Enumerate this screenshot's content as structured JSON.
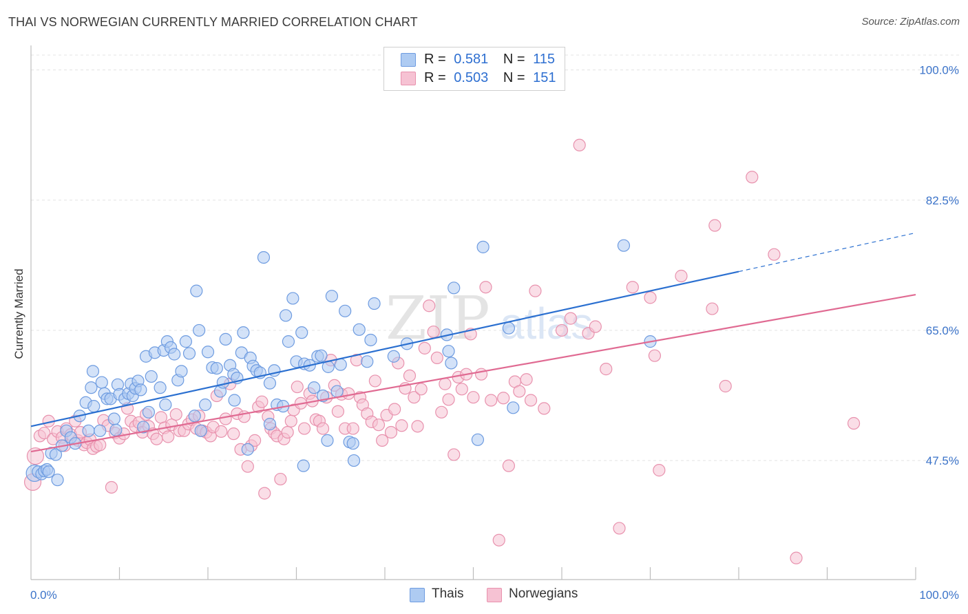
{
  "title": "THAI VS NORWEGIAN CURRENTLY MARRIED CORRELATION CHART",
  "source": "Source: ZipAtlas.com",
  "legend": {
    "r_label": "R =",
    "n_label": "N =",
    "thais": {
      "r": "0.581",
      "n": "115"
    },
    "norwegians": {
      "r": "0.503",
      "n": "151"
    }
  },
  "watermark": {
    "zip": "ZIP",
    "atlas": "atlas"
  },
  "colors": {
    "thais_fill": "#aecbf2",
    "thais_stroke": "#6d9be0",
    "thais_line": "#2a6fd0",
    "norw_fill": "#f6c2d3",
    "norw_stroke": "#e891ad",
    "norw_line": "#e06a92",
    "tick_label": "#3b73c9",
    "grid": "#e3e3e3"
  },
  "chart_data": {
    "type": "scatter",
    "xlabel": "",
    "ylabel": "Currently Married",
    "xlim": [
      0,
      100
    ],
    "ylim": [
      31.5,
      102
    ],
    "x_tick_labels": [
      {
        "value": 0,
        "label": "0.0%"
      },
      {
        "value": 100,
        "label": "100.0%"
      }
    ],
    "y_ticks": [
      {
        "value": 100,
        "label": "100.0%"
      },
      {
        "value": 82.5,
        "label": "82.5%"
      },
      {
        "value": 65,
        "label": "65.0%"
      },
      {
        "value": 47.5,
        "label": "47.5%"
      }
    ],
    "grid": true,
    "legend_position": "top-center",
    "series": [
      {
        "name": "Thais",
        "r": 0.581,
        "n": 115,
        "trend": {
          "x0": 0,
          "y0": 52.1,
          "x1": 80,
          "y1": 72.9,
          "dashed_to_x": 100,
          "dashed_to_y": 78.1
        },
        "points": [
          [
            0.4,
            45.8
          ],
          [
            0.8,
            46.0
          ],
          [
            1.2,
            45.7
          ],
          [
            1.5,
            46.1
          ],
          [
            1.8,
            46.3
          ],
          [
            2.0,
            46.0
          ],
          [
            3.0,
            44.9
          ],
          [
            2.3,
            48.5
          ],
          [
            2.8,
            48.3
          ],
          [
            3.5,
            49.5
          ],
          [
            4.0,
            51.5
          ],
          [
            4.5,
            50.6
          ],
          [
            5.0,
            49.8
          ],
          [
            5.5,
            53.5
          ],
          [
            6.2,
            55.3
          ],
          [
            6.5,
            51.5
          ],
          [
            6.8,
            57.3
          ],
          [
            7.1,
            54.8
          ],
          [
            7.8,
            51.5
          ],
          [
            8.0,
            58.0
          ],
          [
            8.3,
            56.5
          ],
          [
            8.6,
            55.8
          ],
          [
            9.0,
            55.8
          ],
          [
            9.4,
            53.1
          ],
          [
            9.8,
            57.7
          ],
          [
            10.0,
            56.4
          ],
          [
            10.6,
            55.8
          ],
          [
            11.0,
            56.5
          ],
          [
            11.3,
            57.8
          ],
          [
            11.5,
            56.2
          ],
          [
            11.8,
            57.2
          ],
          [
            12.1,
            58.2
          ],
          [
            12.4,
            57.0
          ],
          [
            12.7,
            52.0
          ],
          [
            13.0,
            61.5
          ],
          [
            13.3,
            54.0
          ],
          [
            13.6,
            58.8
          ],
          [
            14.0,
            62.0
          ],
          [
            14.6,
            57.3
          ],
          [
            15.0,
            62.3
          ],
          [
            15.4,
            63.5
          ],
          [
            15.8,
            62.7
          ],
          [
            16.2,
            61.8
          ],
          [
            16.6,
            58.3
          ],
          [
            17.0,
            59.5
          ],
          [
            17.5,
            63.5
          ],
          [
            17.9,
            61.9
          ],
          [
            18.5,
            53.5
          ],
          [
            18.7,
            70.3
          ],
          [
            19.0,
            65.0
          ],
          [
            19.2,
            51.5
          ],
          [
            19.7,
            55.0
          ],
          [
            20.0,
            62.1
          ],
          [
            20.5,
            60.0
          ],
          [
            21.0,
            59.9
          ],
          [
            21.4,
            56.8
          ],
          [
            21.7,
            58.0
          ],
          [
            22.0,
            63.8
          ],
          [
            22.5,
            60.3
          ],
          [
            22.9,
            59.1
          ],
          [
            23.3,
            58.6
          ],
          [
            23.8,
            62.0
          ],
          [
            24.0,
            64.7
          ],
          [
            24.5,
            49.0
          ],
          [
            24.8,
            61.3
          ],
          [
            25.1,
            60.2
          ],
          [
            25.5,
            59.6
          ],
          [
            25.9,
            59.3
          ],
          [
            26.3,
            74.8
          ],
          [
            27.0,
            57.9
          ],
          [
            27.0,
            52.4
          ],
          [
            27.5,
            59.6
          ],
          [
            27.8,
            55.0
          ],
          [
            28.5,
            54.8
          ],
          [
            28.8,
            67.0
          ],
          [
            29.1,
            63.5
          ],
          [
            29.6,
            69.3
          ],
          [
            30.0,
            60.8
          ],
          [
            30.6,
            64.7
          ],
          [
            30.8,
            46.8
          ],
          [
            30.9,
            60.5
          ],
          [
            31.5,
            60.3
          ],
          [
            32.0,
            57.3
          ],
          [
            32.4,
            61.5
          ],
          [
            32.8,
            61.6
          ],
          [
            33.0,
            56.2
          ],
          [
            33.5,
            50.2
          ],
          [
            33.6,
            60.1
          ],
          [
            34.0,
            69.6
          ],
          [
            34.6,
            56.8
          ],
          [
            35.0,
            60.4
          ],
          [
            35.5,
            67.6
          ],
          [
            36.0,
            50.0
          ],
          [
            36.4,
            49.8
          ],
          [
            36.5,
            47.5
          ],
          [
            37.1,
            65.1
          ],
          [
            38.0,
            60.8
          ],
          [
            38.4,
            63.7
          ],
          [
            38.8,
            68.6
          ],
          [
            41.0,
            61.5
          ],
          [
            42.5,
            63.2
          ],
          [
            47.0,
            64.4
          ],
          [
            47.2,
            62.2
          ],
          [
            47.5,
            60.6
          ],
          [
            47.8,
            70.7
          ],
          [
            50.5,
            50.3
          ],
          [
            51.1,
            76.2
          ],
          [
            54.0,
            65.3
          ],
          [
            54.5,
            54.6
          ],
          [
            67.0,
            76.4
          ],
          [
            70.0,
            63.5
          ],
          [
            7.0,
            59.5
          ],
          [
            9.6,
            51.6
          ],
          [
            15.2,
            55.0
          ],
          [
            23.0,
            55.6
          ]
        ]
      },
      {
        "name": "Norwegians",
        "r": 0.503,
        "n": 151,
        "trend": {
          "x0": 0,
          "y0": 48.7,
          "x1": 100,
          "y1": 69.8
        },
        "points": [
          [
            0.2,
            44.6
          ],
          [
            0.5,
            48.1
          ],
          [
            1.0,
            50.8
          ],
          [
            1.5,
            51.2
          ],
          [
            2.0,
            52.8
          ],
          [
            2.5,
            50.4
          ],
          [
            3.0,
            51.4
          ],
          [
            3.5,
            50.6
          ],
          [
            3.8,
            49.5
          ],
          [
            4.0,
            51.8
          ],
          [
            4.5,
            51.0
          ],
          [
            5.0,
            52.8
          ],
          [
            5.3,
            50.2
          ],
          [
            5.6,
            51.3
          ],
          [
            6.0,
            49.6
          ],
          [
            6.3,
            49.9
          ],
          [
            6.7,
            50.3
          ],
          [
            7.0,
            49.1
          ],
          [
            7.4,
            49.4
          ],
          [
            7.8,
            49.6
          ],
          [
            8.2,
            52.9
          ],
          [
            8.7,
            52.2
          ],
          [
            9.1,
            43.9
          ],
          [
            9.5,
            51.2
          ],
          [
            10.0,
            50.5
          ],
          [
            10.5,
            51.1
          ],
          [
            10.9,
            54.5
          ],
          [
            11.3,
            52.8
          ],
          [
            11.8,
            52.1
          ],
          [
            12.2,
            52.6
          ],
          [
            12.6,
            51.3
          ],
          [
            13.0,
            53.7
          ],
          [
            13.3,
            52.1
          ],
          [
            13.8,
            51.1
          ],
          [
            14.2,
            50.4
          ],
          [
            14.7,
            53.3
          ],
          [
            15.1,
            51.9
          ],
          [
            15.5,
            50.7
          ],
          [
            15.9,
            52.3
          ],
          [
            16.4,
            53.7
          ],
          [
            16.8,
            51.5
          ],
          [
            17.3,
            51.5
          ],
          [
            17.8,
            52.4
          ],
          [
            18.2,
            53.0
          ],
          [
            18.7,
            51.8
          ],
          [
            19.0,
            53.5
          ],
          [
            19.4,
            51.5
          ],
          [
            19.8,
            51.3
          ],
          [
            20.3,
            50.8
          ],
          [
            20.6,
            52.0
          ],
          [
            21.0,
            56.2
          ],
          [
            21.5,
            51.4
          ],
          [
            22.0,
            53.1
          ],
          [
            22.5,
            57.8
          ],
          [
            22.9,
            51.1
          ],
          [
            23.3,
            53.8
          ],
          [
            23.7,
            49.0
          ],
          [
            24.1,
            53.4
          ],
          [
            24.5,
            46.7
          ],
          [
            24.9,
            49.5
          ],
          [
            25.3,
            50.2
          ],
          [
            25.7,
            54.7
          ],
          [
            26.1,
            55.4
          ],
          [
            26.4,
            43.1
          ],
          [
            26.8,
            53.4
          ],
          [
            27.1,
            51.8
          ],
          [
            27.5,
            51.2
          ],
          [
            27.8,
            50.8
          ],
          [
            28.2,
            45.0
          ],
          [
            28.6,
            50.4
          ],
          [
            29.0,
            51.3
          ],
          [
            29.4,
            52.8
          ],
          [
            29.7,
            54.3
          ],
          [
            30.1,
            57.4
          ],
          [
            30.5,
            55.2
          ],
          [
            30.9,
            51.8
          ],
          [
            31.5,
            56.5
          ],
          [
            31.8,
            55.5
          ],
          [
            32.2,
            53.0
          ],
          [
            32.6,
            52.8
          ],
          [
            33.0,
            51.8
          ],
          [
            33.4,
            56.0
          ],
          [
            33.9,
            61.0
          ],
          [
            34.3,
            57.6
          ],
          [
            34.7,
            54.1
          ],
          [
            35.1,
            56.4
          ],
          [
            35.5,
            51.8
          ],
          [
            35.9,
            56.5
          ],
          [
            36.4,
            51.8
          ],
          [
            36.8,
            61.0
          ],
          [
            37.2,
            56.0
          ],
          [
            37.5,
            55.0
          ],
          [
            38.0,
            53.8
          ],
          [
            38.5,
            52.7
          ],
          [
            38.9,
            58.2
          ],
          [
            39.3,
            52.3
          ],
          [
            39.7,
            50.2
          ],
          [
            40.2,
            53.6
          ],
          [
            40.7,
            51.3
          ],
          [
            41.1,
            54.4
          ],
          [
            41.5,
            60.6
          ],
          [
            41.9,
            52.2
          ],
          [
            42.3,
            57.2
          ],
          [
            42.8,
            58.9
          ],
          [
            43.3,
            56.0
          ],
          [
            43.7,
            52.1
          ],
          [
            44.1,
            57.1
          ],
          [
            44.5,
            62.6
          ],
          [
            45.0,
            68.3
          ],
          [
            45.5,
            64.8
          ],
          [
            45.9,
            61.3
          ],
          [
            46.4,
            54.0
          ],
          [
            46.8,
            57.8
          ],
          [
            47.2,
            55.7
          ],
          [
            47.8,
            48.3
          ],
          [
            48.3,
            58.7
          ],
          [
            48.7,
            57.1
          ],
          [
            49.2,
            59.1
          ],
          [
            49.7,
            64.5
          ],
          [
            50.0,
            56.0
          ],
          [
            50.9,
            59.1
          ],
          [
            51.4,
            70.8
          ],
          [
            52.0,
            55.6
          ],
          [
            52.9,
            36.8
          ],
          [
            53.4,
            55.9
          ],
          [
            54.0,
            46.8
          ],
          [
            54.7,
            58.1
          ],
          [
            55.2,
            56.8
          ],
          [
            56.0,
            58.4
          ],
          [
            56.5,
            55.6
          ],
          [
            57.0,
            70.3
          ],
          [
            58.0,
            54.5
          ],
          [
            60.0,
            65.0
          ],
          [
            61.0,
            66.6
          ],
          [
            62.0,
            89.9
          ],
          [
            63.0,
            64.6
          ],
          [
            63.8,
            65.5
          ],
          [
            65.0,
            59.8
          ],
          [
            66.5,
            38.4
          ],
          [
            68.0,
            70.8
          ],
          [
            70.0,
            69.4
          ],
          [
            70.5,
            61.6
          ],
          [
            71.0,
            46.2
          ],
          [
            73.5,
            72.3
          ],
          [
            77.0,
            67.9
          ],
          [
            77.3,
            79.1
          ],
          [
            78.5,
            57.5
          ],
          [
            81.5,
            85.6
          ],
          [
            84.0,
            75.2
          ],
          [
            86.5,
            34.4
          ],
          [
            93.0,
            52.5
          ]
        ]
      }
    ]
  }
}
